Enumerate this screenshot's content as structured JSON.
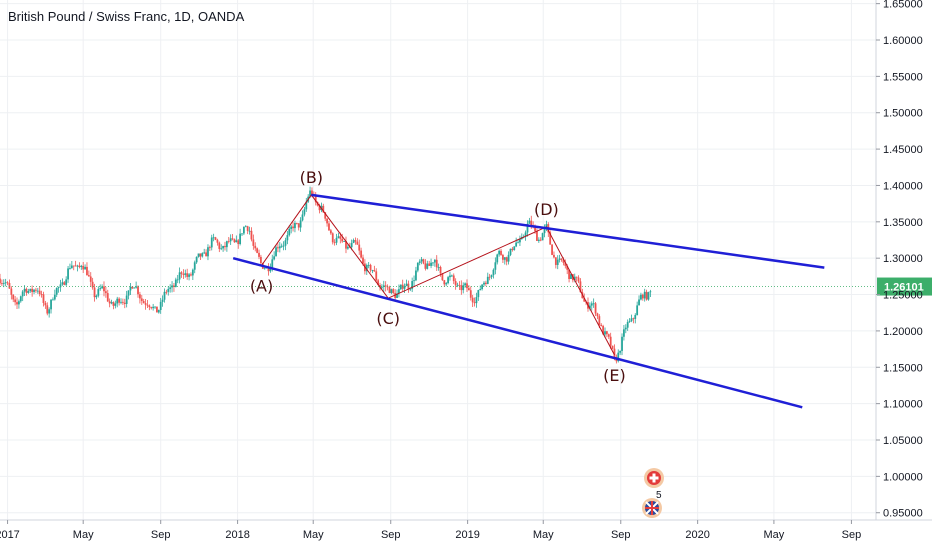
{
  "chart_data": {
    "type": "candlestick",
    "title": "British Pound / Swiss Franc, 1D, OANDA",
    "y_ticks": [
      0.95,
      1.0,
      1.05,
      1.1,
      1.15,
      1.2,
      1.25,
      1.3,
      1.35,
      1.4,
      1.45,
      1.5,
      1.55,
      1.6,
      1.65
    ],
    "y_tick_labels": [
      "0.95000",
      "1.00000",
      "1.05000",
      "1.10000",
      "1.15000",
      "1.20000",
      "1.25000",
      "1.30000",
      "1.35000",
      "1.40000",
      "1.45000",
      "1.50000",
      "1.55000",
      "1.60000",
      "1.65000"
    ],
    "ylim": [
      0.94,
      1.655
    ],
    "x_ticks": [
      "2017-01",
      "2017-05",
      "2017-09",
      "2018-01",
      "2018-05",
      "2018-09",
      "2019-01",
      "2019-05",
      "2019-09",
      "2020-01",
      "2020-05",
      "2020-09"
    ],
    "x_tick_labels": [
      "2017",
      "May",
      "Sep",
      "2018",
      "May",
      "Sep",
      "2019",
      "May",
      "Sep",
      "2020",
      "May",
      "Sep"
    ],
    "xlim": [
      "2016-12-20",
      "2020-10-10"
    ],
    "last_price": 1.26101,
    "last_price_label": "1.26101",
    "price_path": [
      [
        "2016-12-20",
        1.272
      ],
      [
        "2017-01-15",
        1.245
      ],
      [
        "2017-02-10",
        1.255
      ],
      [
        "2017-03-05",
        1.238
      ],
      [
        "2017-04-10",
        1.278
      ],
      [
        "2017-04-28",
        1.3
      ],
      [
        "2017-05-20",
        1.252
      ],
      [
        "2017-06-20",
        1.238
      ],
      [
        "2017-07-15",
        1.258
      ],
      [
        "2017-08-15",
        1.232
      ],
      [
        "2017-09-10",
        1.248
      ],
      [
        "2017-10-05",
        1.275
      ],
      [
        "2017-11-01",
        1.3
      ],
      [
        "2017-12-01",
        1.32
      ],
      [
        "2017-12-28",
        1.325
      ],
      [
        "2018-01-20",
        1.335
      ],
      [
        "2018-02-08",
        1.29
      ],
      [
        "2018-03-05",
        1.305
      ],
      [
        "2018-04-01",
        1.345
      ],
      [
        "2018-04-28",
        1.387
      ],
      [
        "2018-05-20",
        1.352
      ],
      [
        "2018-06-15",
        1.32
      ],
      [
        "2018-07-10",
        1.308
      ],
      [
        "2018-08-05",
        1.282
      ],
      [
        "2018-08-28",
        1.245
      ],
      [
        "2018-09-20",
        1.262
      ],
      [
        "2018-10-15",
        1.282
      ],
      [
        "2018-11-10",
        1.295
      ],
      [
        "2018-12-10",
        1.262
      ],
      [
        "2019-01-05",
        1.25
      ],
      [
        "2019-01-28",
        1.265
      ],
      [
        "2019-02-20",
        1.298
      ],
      [
        "2019-03-15",
        1.318
      ],
      [
        "2019-04-05",
        1.338
      ],
      [
        "2019-04-25",
        1.33
      ],
      [
        "2019-05-06",
        1.343
      ],
      [
        "2019-05-25",
        1.29
      ],
      [
        "2019-06-20",
        1.27
      ],
      [
        "2019-07-15",
        1.238
      ],
      [
        "2019-08-10",
        1.185
      ],
      [
        "2019-08-22",
        1.167
      ],
      [
        "2019-09-10",
        1.205
      ],
      [
        "2019-09-28",
        1.228
      ],
      [
        "2019-10-05",
        1.24
      ],
      [
        "2019-10-18",
        1.262
      ]
    ],
    "wave_points": [
      {
        "label": "(A)",
        "date": "2018-02-08",
        "price": 1.29
      },
      {
        "label": "(B)",
        "date": "2018-04-28",
        "price": 1.387
      },
      {
        "label": "(C)",
        "date": "2018-08-28",
        "price": 1.245
      },
      {
        "label": "(D)",
        "date": "2019-05-06",
        "price": 1.343
      },
      {
        "label": "(E)",
        "date": "2019-08-22",
        "price": 1.167
      }
    ],
    "trendlines": [
      {
        "name": "upper",
        "from": {
          "date": "2018-04-28",
          "price": 1.387
        },
        "to": {
          "date": "2020-07-20",
          "price": 1.287
        }
      },
      {
        "name": "lower",
        "from": {
          "date": "2017-12-25",
          "price": 1.3
        },
        "to": {
          "date": "2020-06-15",
          "price": 1.095
        }
      }
    ],
    "colors": {
      "up": "#26a69a",
      "down": "#ef5350",
      "trendline": "#1f1fd6",
      "wave_line": "#b5121b",
      "wave_label": "#4a0e0e",
      "price_tag": "#3cae6a",
      "grid": "#eef0f3"
    },
    "grid": true
  },
  "events": {
    "icon_chf": "swiss-flag-icon",
    "icon_gbp": "uk-flag-icon",
    "event_count": "5"
  }
}
